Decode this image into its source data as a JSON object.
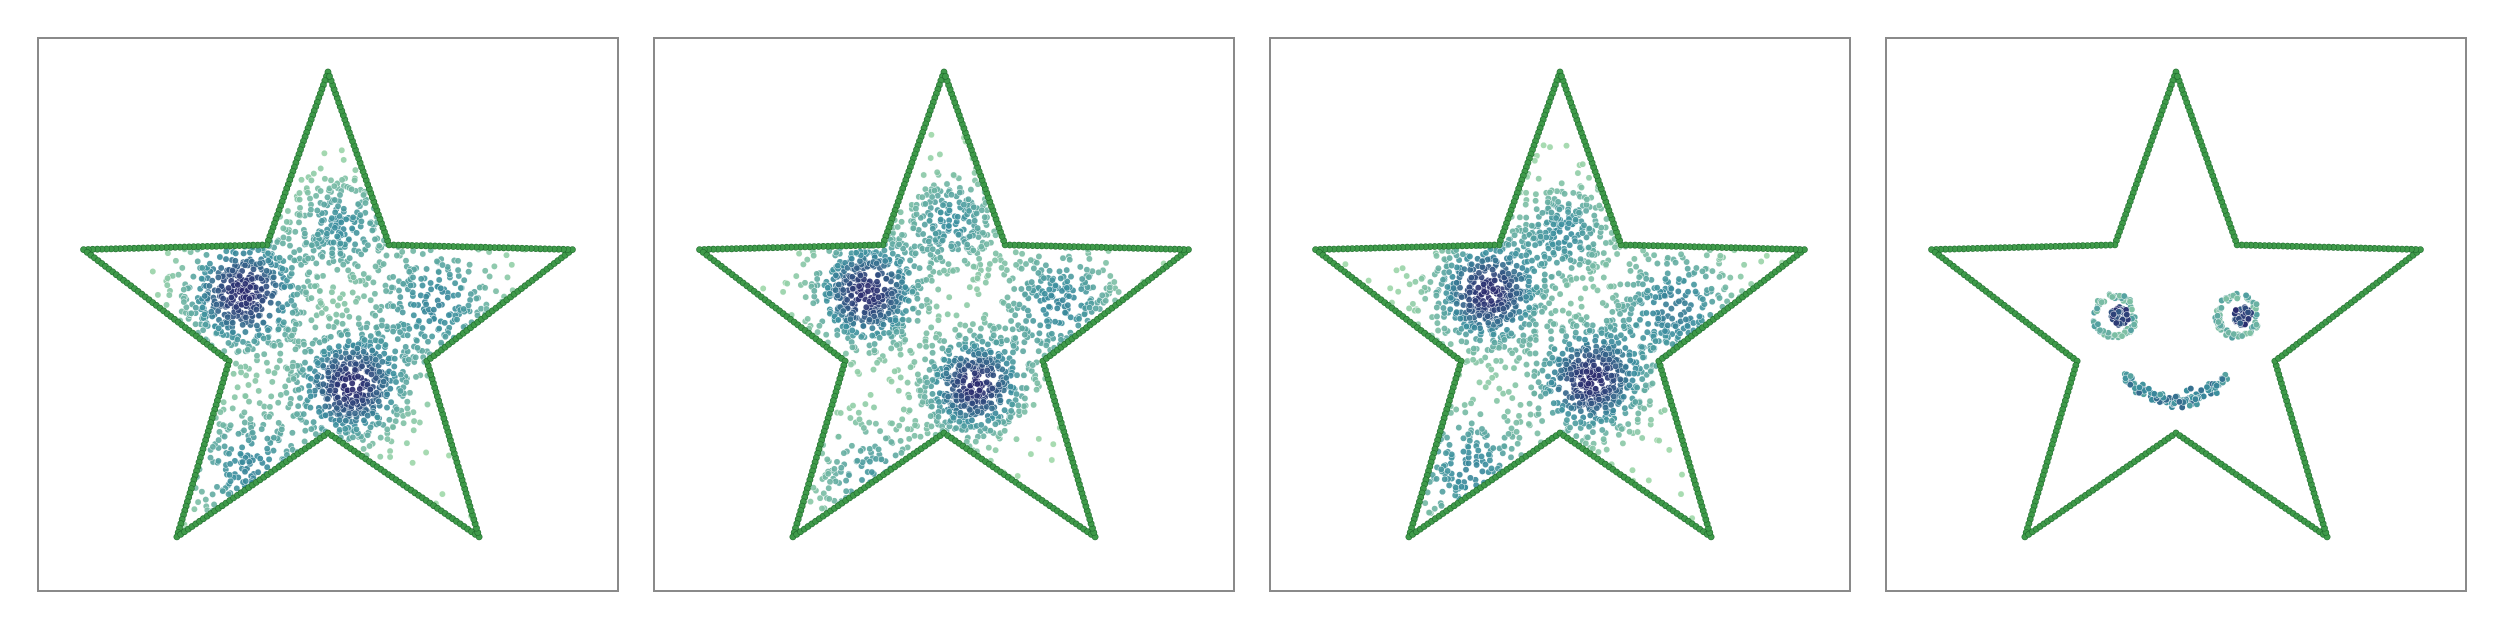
{
  "chart_data": [
    {
      "type": "scatter",
      "title": "",
      "xlabel": "",
      "ylabel": "",
      "grid": false,
      "legend": "none",
      "boundary": "star",
      "density_clusters": [
        {
          "x": -0.33,
          "y": 0.14,
          "spread": 0.14,
          "weight": 1.0
        },
        {
          "x": 0.09,
          "y": -0.22,
          "spread": 0.13,
          "weight": 1.0
        },
        {
          "x": 0.42,
          "y": 0.1,
          "spread": 0.16,
          "weight": 0.55
        },
        {
          "x": 0.05,
          "y": 0.4,
          "spread": 0.12,
          "weight": 0.5
        },
        {
          "x": -0.3,
          "y": -0.55,
          "spread": 0.16,
          "weight": 0.55
        }
      ]
    },
    {
      "type": "scatter",
      "title": "",
      "xlabel": "",
      "ylabel": "",
      "grid": false,
      "legend": "none",
      "boundary": "star",
      "density_clusters": [
        {
          "x": -0.3,
          "y": 0.14,
          "spread": 0.13,
          "weight": 1.0
        },
        {
          "x": 0.12,
          "y": -0.22,
          "spread": 0.12,
          "weight": 1.0
        },
        {
          "x": 0.45,
          "y": 0.1,
          "spread": 0.15,
          "weight": 0.55
        },
        {
          "x": 0.03,
          "y": 0.42,
          "spread": 0.12,
          "weight": 0.5
        },
        {
          "x": -0.28,
          "y": -0.58,
          "spread": 0.15,
          "weight": 0.45
        }
      ]
    },
    {
      "type": "scatter",
      "title": "",
      "xlabel": "",
      "ylabel": "",
      "grid": false,
      "legend": "none",
      "boundary": "star",
      "density_clusters": [
        {
          "x": -0.28,
          "y": 0.14,
          "spread": 0.13,
          "weight": 1.0
        },
        {
          "x": 0.12,
          "y": -0.2,
          "spread": 0.13,
          "weight": 1.0
        },
        {
          "x": 0.45,
          "y": 0.08,
          "spread": 0.15,
          "weight": 0.6
        },
        {
          "x": 0.02,
          "y": 0.38,
          "spread": 0.12,
          "weight": 0.5
        },
        {
          "x": -0.35,
          "y": -0.55,
          "spread": 0.16,
          "weight": 0.55
        }
      ]
    },
    {
      "type": "scatter",
      "title": "",
      "xlabel": "",
      "ylabel": "",
      "grid": false,
      "legend": "none",
      "boundary": "star",
      "features": {
        "left_eye": {
          "x": -0.24,
          "y": 0.05,
          "r": 0.08
        },
        "right_eye": {
          "x": 0.24,
          "y": 0.05,
          "r": 0.08
        },
        "mouth": {
          "x": 0.0,
          "y": -0.18,
          "width": 0.4,
          "depth": 0.1
        }
      }
    }
  ],
  "colors": {
    "boundary": "#3f9a4a",
    "boundary_edge": "#1e6b2c",
    "density_low": "#9fd8a8",
    "density_mid": "#3b8f9e",
    "density_high": "#2a2a6e",
    "panel_border": "#8a8a8a"
  }
}
